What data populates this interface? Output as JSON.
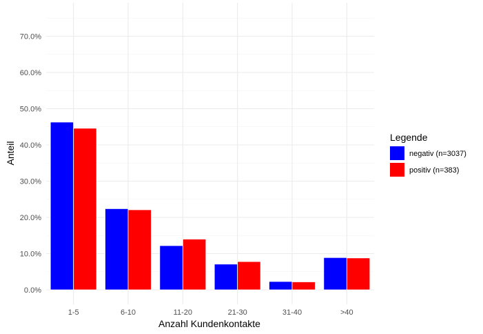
{
  "chart_data": {
    "type": "bar",
    "title": "",
    "xlabel": "Anzahl Kundenkontakte",
    "ylabel": "Anteil",
    "categories": [
      "1-5",
      "6-10",
      "11-20",
      "21-30",
      "31-40",
      ">40"
    ],
    "series": [
      {
        "name": "negativ (n=3037)",
        "color": "#0000ff",
        "values": [
          46.3,
          22.4,
          12.2,
          7.1,
          2.3,
          8.9
        ]
      },
      {
        "name": "positiv (n=383)",
        "color": "#ff0000",
        "values": [
          44.6,
          22.1,
          14.0,
          7.8,
          2.2,
          8.8
        ]
      }
    ],
    "ylim": [
      0,
      75
    ],
    "y_ticks": [
      0,
      10,
      20,
      30,
      40,
      50,
      60,
      70
    ],
    "y_tick_labels": [
      "0.0%",
      "10.0%",
      "20.0%",
      "30.0%",
      "40.0%",
      "50.0%",
      "60.0%",
      "70.0%"
    ],
    "grid": true,
    "legend": {
      "title": "Legende",
      "position": "right"
    }
  }
}
